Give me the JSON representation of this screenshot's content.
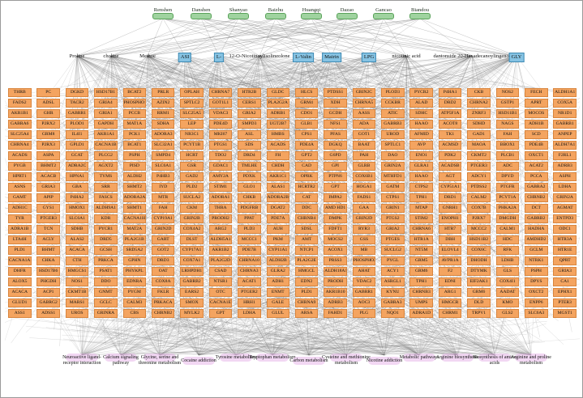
{
  "herbs": [
    "Renshen",
    "Danshen",
    "Shanyao",
    "Baizhu",
    "Huangqi",
    "Dazao",
    "Gancao",
    "Biandou"
  ],
  "compounds": [
    {
      "label": "Proline",
      "highlight": false
    },
    {
      "label": "choline",
      "highlight": false
    },
    {
      "label": "Methoe",
      "highlight": false
    },
    {
      "label": "ASI",
      "highlight": true
    },
    {
      "label": "L-",
      "highlight": true
    },
    {
      "label": "12-O-Nicotinoylisolineolone",
      "highlight": false
    },
    {
      "label": "L-Valin",
      "highlight": true
    },
    {
      "label": "Mairin",
      "highlight": true
    },
    {
      "label": "LPG",
      "highlight": true
    },
    {
      "label": "nicotinic acid",
      "highlight": false
    },
    {
      "label": "dantonside 20-Hexadecanoylingenol",
      "highlight": false
    },
    {
      "label": "GLY",
      "highlight": true
    }
  ],
  "targets": [
    "THRB",
    "PC",
    "DGKD",
    "HSD17B1",
    "BCAT2",
    "PRLR",
    "OPLAH",
    "CHRNA7",
    "HTR2B",
    "GLDC",
    "HLCS",
    "PTDSS1",
    "GRIN2C",
    "PLOD3",
    "PYCR2",
    "P4HA1",
    "CKB",
    "NOS2",
    "FECH",
    "ALDH1A1",
    "FADS2",
    "ADSL",
    "TACR2",
    "GRIA4",
    "PHOSPHO1",
    "AZIN2",
    "SPTLC2",
    "GOT1L1",
    "CERS1",
    "PLA2G2A",
    "GRM4",
    "XDH",
    "CHRNA5",
    "CCKBR",
    "ALAD",
    "DRD2",
    "CHRNA2",
    "GSTP1",
    "APRT",
    "COX5A",
    "AKR1B1",
    "GHR",
    "GABRR1",
    "GRIA1",
    "PCCB",
    "RRM1",
    "SLC25A5",
    "VDAC3",
    "GRIA2",
    "ADRB1",
    "CDO1",
    "GCDH",
    "AASS",
    "ATIC",
    "SDHC",
    "ATP5F1A",
    "ZNRF3",
    "HSD11B1",
    "MOCOS",
    "NR1D1",
    "GABRA6",
    "P2RX2",
    "PLOD1",
    "GAPDH",
    "MAT1A",
    "SDHA",
    "LEP",
    "PDE4D",
    "SMPD3",
    "UGT2B7",
    "GLB1",
    "NFS1",
    "ADA",
    "GABRB3",
    "HAAO",
    "ACOT8",
    "SDHD",
    "NAGS",
    "ADH1B",
    "GABRB1",
    "SLC25A4",
    "GRM8",
    "IL4I1",
    "AKR1A1",
    "PCK1",
    "ADORA3",
    "NR3C1",
    "MKI67",
    "ASL",
    "HMBS",
    "CPS1",
    "PFAS",
    "GOT1",
    "UROD",
    "AFMID",
    "TK1",
    "GAD1",
    "FAH",
    "SCD",
    "ANPEP",
    "CHRNA4",
    "P2RX3",
    "GPLD1",
    "CACNA1B",
    "BCAT1",
    "SLC32A1",
    "PCYT1B",
    "PTGS1",
    "SDS",
    "ACADS",
    "PDE4A",
    "DGKQ",
    "BAAT",
    "SPTLC1",
    "AVP",
    "ACMSD",
    "MAOA",
    "BBOX1",
    "PDE4B",
    "ALDH7A1",
    "ACADS",
    "ASPA",
    "GCAT",
    "PLCG2",
    "PSPH",
    "SMPD4",
    "HCRT",
    "TDO2",
    "DRD4",
    "FH",
    "GPT2",
    "G6PD",
    "PAH",
    "DAO",
    "ENO1",
    "PDK2",
    "CKMT2",
    "PLCB1",
    "OXCT1",
    "F2RL1",
    "PYGB",
    "BHMT2",
    "ADRA2C",
    "AGXT2",
    "PISD",
    "SLC6A1",
    "GSR",
    "GDAC1",
    "TMLHE",
    "CHDH",
    "CAD",
    "GPI",
    "GLRB",
    "GRIN2A",
    "GLRA1",
    "ACADSB",
    "PTGER3",
    "ADC",
    "ACAT2",
    "ADRB3",
    "HPRT1",
    "ACACB",
    "HPNA1",
    "TYMS",
    "ALDH2",
    "P4HB3",
    "GAD2",
    "AMY2A",
    "PDXK",
    "AKR1C1",
    "OPRK",
    "PTPN6",
    "COX6B1",
    "MTHFD1",
    "HAAO",
    "AGT",
    "ADCY1",
    "DPYD",
    "PCCA",
    "ASPH",
    "ASNS",
    "GRIA3",
    "GBA",
    "SRR",
    "SHMT2",
    "IYD",
    "PLD2",
    "STIM1",
    "GLO1",
    "ALAS1",
    "HCRTR2",
    "GPT",
    "HOGA1",
    "GATM",
    "CTPS2",
    "CYP51A1",
    "PTDSS2",
    "PTGFR",
    "GABRA2",
    "LDHA",
    "GAMT",
    "APIP",
    "P4HA2",
    "FASCS",
    "ADORA2A",
    "MTR",
    "SUCLA2",
    "ADORA1",
    "CHKB",
    "ADORA2B",
    "CAT",
    "IMPA2",
    "FADS1",
    "CTPS1",
    "TPH1",
    "DRD1",
    "CALM2",
    "PCYT1A",
    "CHRNB2",
    "GRIN2A",
    "ADH1C",
    "GYS1",
    "HMOX1",
    "ALDH9A1",
    "SHMT1",
    "FAH",
    "CKM",
    "THRA",
    "PDGFRB",
    "DGAT2",
    "DDC",
    "AMD HD1",
    "GAA",
    "GRIN1",
    "MTAP",
    "GNRH1",
    "COX7B",
    "PHKA2A",
    "DCT",
    "AGMAT",
    "TYR",
    "PTGER3",
    "SLC6A1",
    "KDR",
    "CACNA1H",
    "CYP19A1",
    "GRIN2B",
    "PRODH2",
    "PPAT",
    "PDE7A",
    "CHRNB4",
    "DMPK",
    "GRIN2D",
    "PTGS2",
    "STIM2",
    "ENOPH1",
    "P2RX7",
    "DMGDH",
    "GABRB2",
    "ENTPD3",
    "ADRA1B",
    "TCN",
    "SDHB",
    "PYCR1",
    "MAT2A",
    "GRIN2D",
    "COX4A2",
    "ARG2",
    "PLD3",
    "AUH",
    "SDSL",
    "FDFT1",
    "RYR3",
    "GRIA2",
    "CHRNA6",
    "HTR7",
    "MCCC2",
    "CALM1",
    "HADHA",
    "ODC1",
    "LTA4H",
    "ACLY",
    "ALAS2",
    "DRD5",
    "PLA2G1B",
    "GART",
    "DLST",
    "ALDH5A1",
    "MCCC1",
    "PKM",
    "AMT",
    "MOCS2",
    "GSS",
    "PTGES",
    "HTR1A",
    "DBH",
    "HSD11B2",
    "HDC",
    "AMDHD2",
    "HTR3A",
    "PLD1",
    "BHMT",
    "ACACA",
    "GCSH",
    "SRD5A2",
    "GOT2",
    "CYP17A1",
    "AKR1B2",
    "PDE7B",
    "CYP11A1",
    "NTCP1",
    "ACOX1",
    "MB",
    "SUCLG2",
    "NT5M",
    "ELOVL4",
    "COX6C",
    "RFK",
    "GCLM",
    "HTR1E",
    "CACNA1A",
    "CHKA",
    "CTH",
    "PRKCA",
    "GPHN",
    "DRD3",
    "COX7A1",
    "PLA2G2D",
    "CHRNA10",
    "ALDH2B",
    "PLA2G2E",
    "PRSS3",
    "PHOSPHO2",
    "PYGL",
    "GRM5",
    "AVPR1A",
    "DHODH",
    "LDHB",
    "NTRK1",
    "QPRT",
    "DHFR",
    "HSD17B6",
    "HMGCS1",
    "PSAT1",
    "PHYKPL",
    "OAT",
    "LRHPDH1",
    "CSAD",
    "CHRNA3",
    "GLRA2",
    "HMGCL",
    "ALDH18A1",
    "AHAT",
    "ACY1",
    "GRM6",
    "F2",
    "DTYMK",
    "GLS",
    "PSPH",
    "GRIA3",
    "ALOX5",
    "PHGDH",
    "NOS1",
    "DDO",
    "EDNRA",
    "COX8A",
    "GABRB2",
    "NTSR1",
    "ACAT1",
    "ADH1",
    "EDN2",
    "PRODH",
    "VDAC2",
    "ASRGL1",
    "TPH1",
    "EDNI",
    "EIF2AK1",
    "COX4I1",
    "DPYS",
    "CA1",
    "ACACA",
    "ACP1",
    "CKMT1B",
    "GNMT",
    "PYGM",
    "FKLR",
    "EARS2",
    "OTC",
    "PTGER2",
    "ENMT",
    "PLD1",
    "AKR1B10",
    "GABRR1",
    "KYNU",
    "CHRNB3",
    "ARG1",
    "GRM6",
    "AADAT",
    "OXCT2",
    "EPHX1",
    "GLUD1",
    "GABRG2",
    "MARS1",
    "GCLC",
    "CALM3",
    "PRKACA",
    "SMOX",
    "CACNA1E",
    "HRH1",
    "GALE",
    "CHRNA9",
    "ADRB3",
    "AOC3",
    "GABRA3",
    "UMPS",
    "HMGCR",
    "DLD",
    "KMO",
    "ENPP6",
    "PTER3",
    "ASS1",
    "ADSS1",
    "UROS",
    "GRINRA",
    "CBS",
    "CHRNB2",
    "MYLK2",
    "GPT",
    "LDHA",
    "GLUL",
    "ARSA",
    "FAHD1",
    "PLG",
    "NQO1",
    "ADRA1D",
    "CHRM1",
    "TRPV1",
    "GLS2",
    "SLC6A3",
    "MGST1"
  ],
  "pathways": [
    "Neuroactive ligand-receptor interaction",
    "Calcium signaling pathway",
    "Glycine, serine and threonine metabolism",
    "Cocaine addiction",
    "Tyrosine metabolism",
    "Tryptophan metabolism",
    "Carbon metabolism",
    "Cysteine and methionine metabolism",
    "Nicotine addiction",
    "Metabolic pathways",
    "Arginine biosynthesis",
    "Biosynthesis of amino acids",
    "Arginine and proline metabolism"
  ]
}
